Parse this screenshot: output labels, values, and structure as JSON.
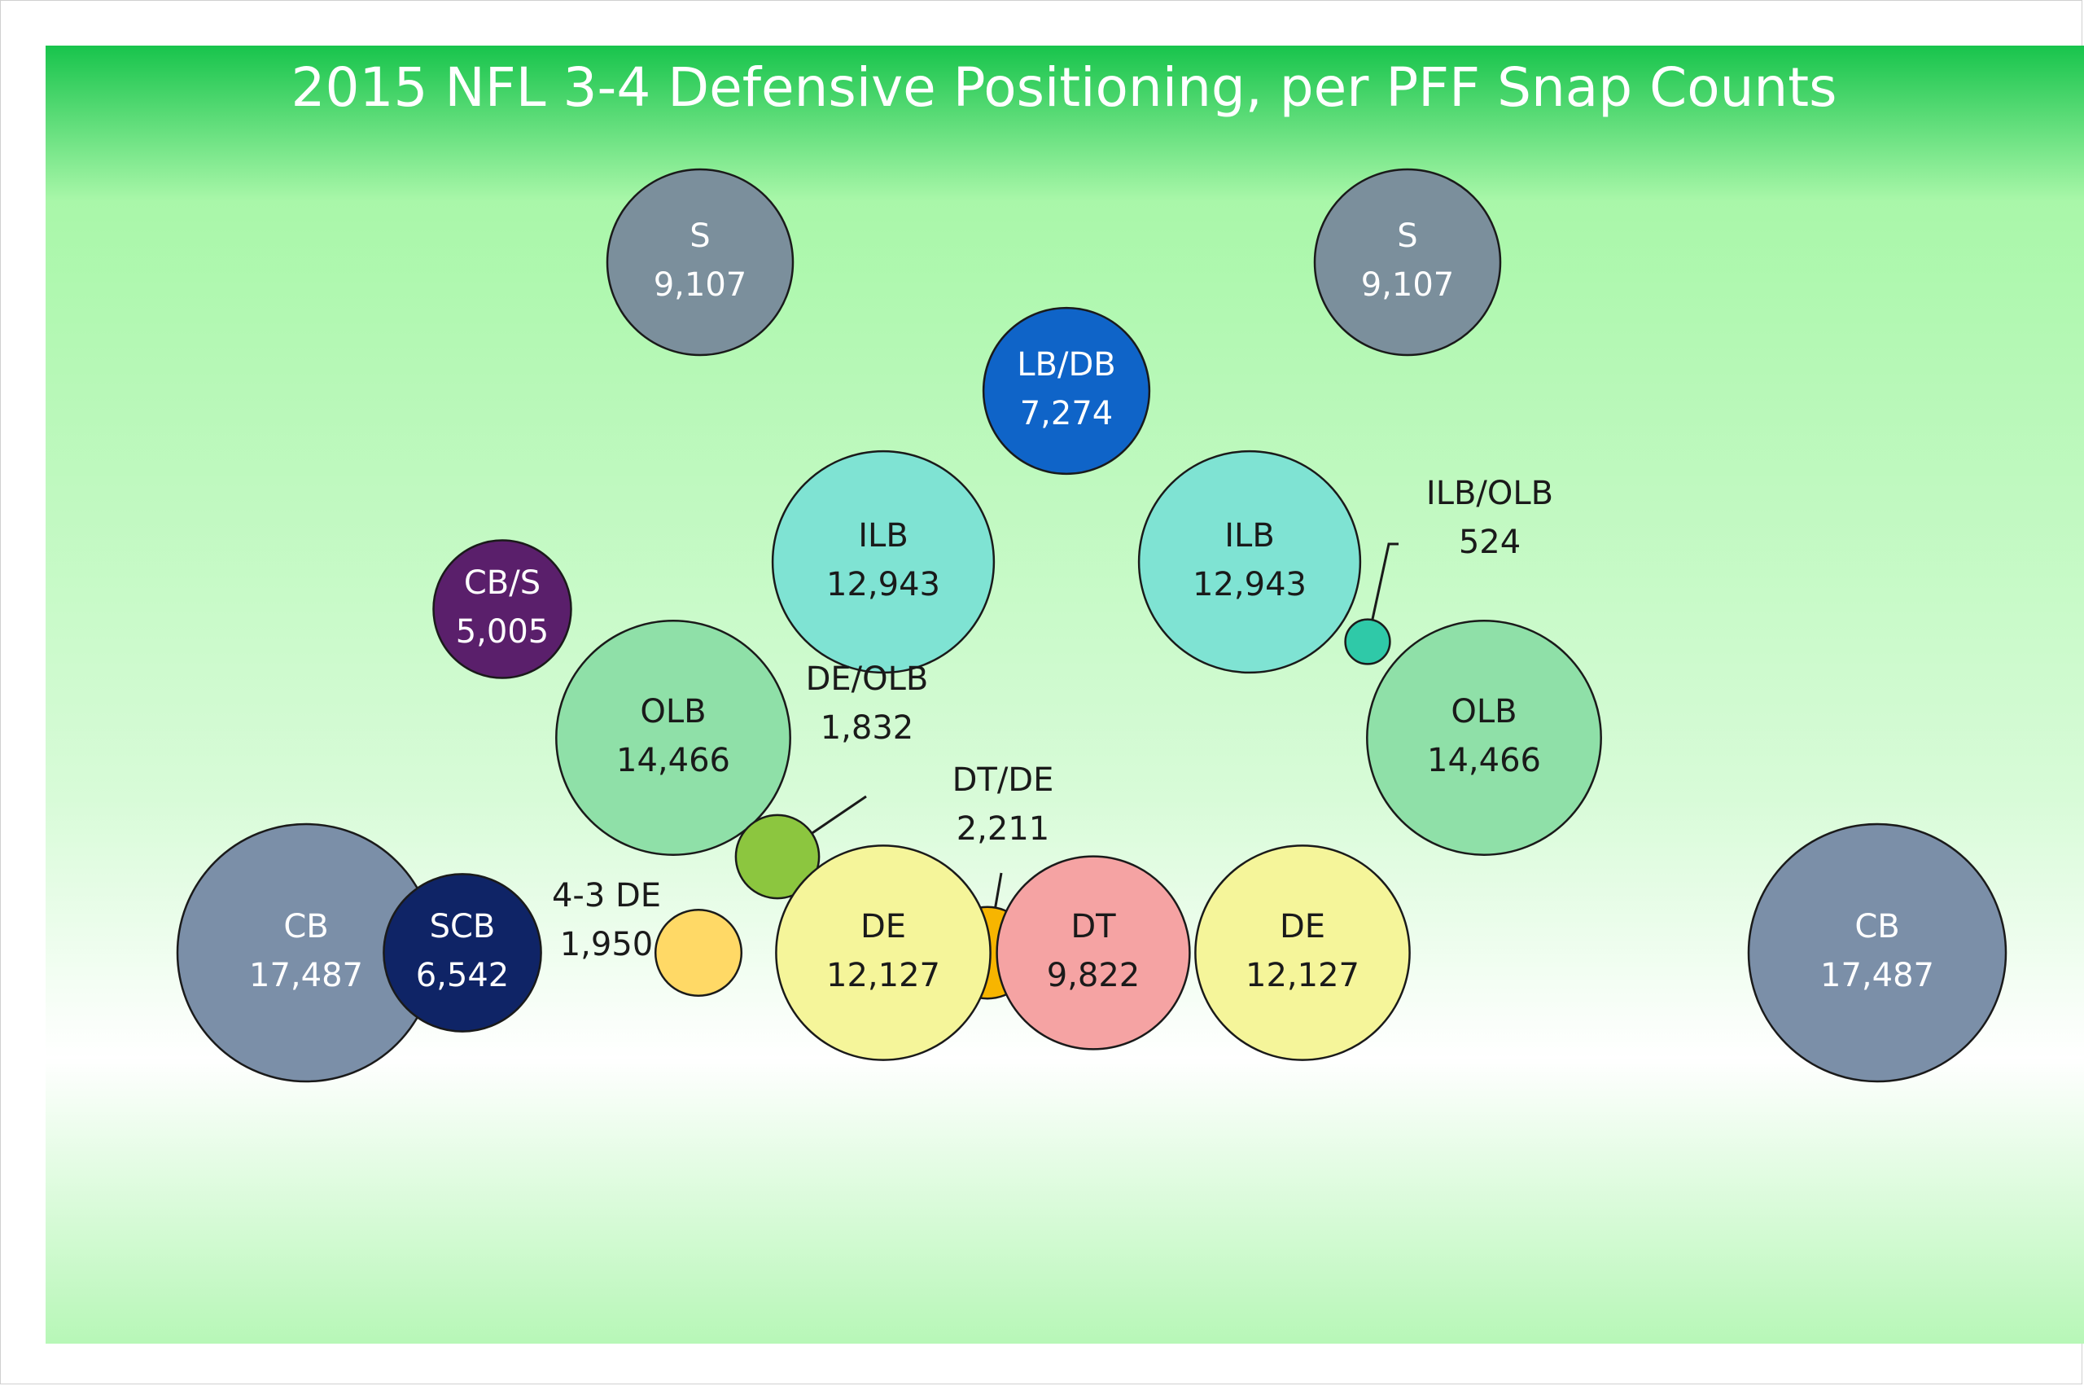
{
  "chart_data": {
    "type": "bubble",
    "title": "2015 NFL 3-4 Defensive Positioning, per PFF Snap Counts",
    "background": {
      "top": "#18c44c",
      "mid": "#a9f7a9",
      "light": "#ffffff",
      "bottom": "#b7f7b7"
    },
    "bubbles": [
      {
        "position": "S",
        "value": "9,107",
        "snaps": 9107,
        "fill": "#7b8f9c",
        "text_color": "#ffffff",
        "label": "inside"
      },
      {
        "position": "S",
        "value": "9,107",
        "snaps": 9107,
        "fill": "#7b8f9c",
        "text_color": "#ffffff",
        "label": "inside"
      },
      {
        "position": "LB/DB",
        "value": "7,274",
        "snaps": 7274,
        "fill": "#0f64c8",
        "text_color": "#ffffff",
        "label": "inside"
      },
      {
        "position": "ILB",
        "value": "12,943",
        "snaps": 12943,
        "fill": "#7fe3d3",
        "text_color": "#1a1a1a",
        "label": "inside"
      },
      {
        "position": "ILB",
        "value": "12,943",
        "snaps": 12943,
        "fill": "#7fe3d3",
        "text_color": "#1a1a1a",
        "label": "inside"
      },
      {
        "position": "ILB/OLB",
        "value": "524",
        "snaps": 524,
        "fill": "#2fc9a8",
        "text_color": "#1a1a1a",
        "label": "callout"
      },
      {
        "position": "CB/S",
        "value": "5,005",
        "snaps": 5005,
        "fill": "#5a1f6b",
        "text_color": "#ffffff",
        "label": "inside"
      },
      {
        "position": "OLB",
        "value": "14,466",
        "snaps": 14466,
        "fill": "#8fe0a8",
        "text_color": "#1a1a1a",
        "label": "inside"
      },
      {
        "position": "OLB",
        "value": "14,466",
        "snaps": 14466,
        "fill": "#8fe0a8",
        "text_color": "#1a1a1a",
        "label": "inside"
      },
      {
        "position": "DE/OLB",
        "value": "1,832",
        "snaps": 1832,
        "fill": "#8cc63f",
        "text_color": "#1a1a1a",
        "label": "callout"
      },
      {
        "position": "DT/DE",
        "value": "2,211",
        "snaps": 2211,
        "fill": "#f7b500",
        "text_color": "#1a1a1a",
        "label": "callout"
      },
      {
        "position": "CB",
        "value": "17,487",
        "snaps": 17487,
        "fill": "#7b8fa8",
        "text_color": "#ffffff",
        "label": "inside"
      },
      {
        "position": "CB",
        "value": "17,487",
        "snaps": 17487,
        "fill": "#7b8fa8",
        "text_color": "#ffffff",
        "label": "inside"
      },
      {
        "position": "SCB",
        "value": "6,542",
        "snaps": 6542,
        "fill": "#0f2466",
        "text_color": "#ffffff",
        "label": "inside"
      },
      {
        "position": "4-3 DE",
        "value": "1,950",
        "snaps": 1950,
        "fill": "#ffd966",
        "text_color": "#1a1a1a",
        "label": "side"
      },
      {
        "position": "DE",
        "value": "12,127",
        "snaps": 12127,
        "fill": "#f5f59a",
        "text_color": "#1a1a1a",
        "label": "inside"
      },
      {
        "position": "DE",
        "value": "12,127",
        "snaps": 12127,
        "fill": "#f5f59a",
        "text_color": "#1a1a1a",
        "label": "inside"
      },
      {
        "position": "DT",
        "value": "9,822",
        "snaps": 9822,
        "fill": "#f5a3a3",
        "text_color": "#1a1a1a",
        "label": "inside"
      }
    ]
  }
}
